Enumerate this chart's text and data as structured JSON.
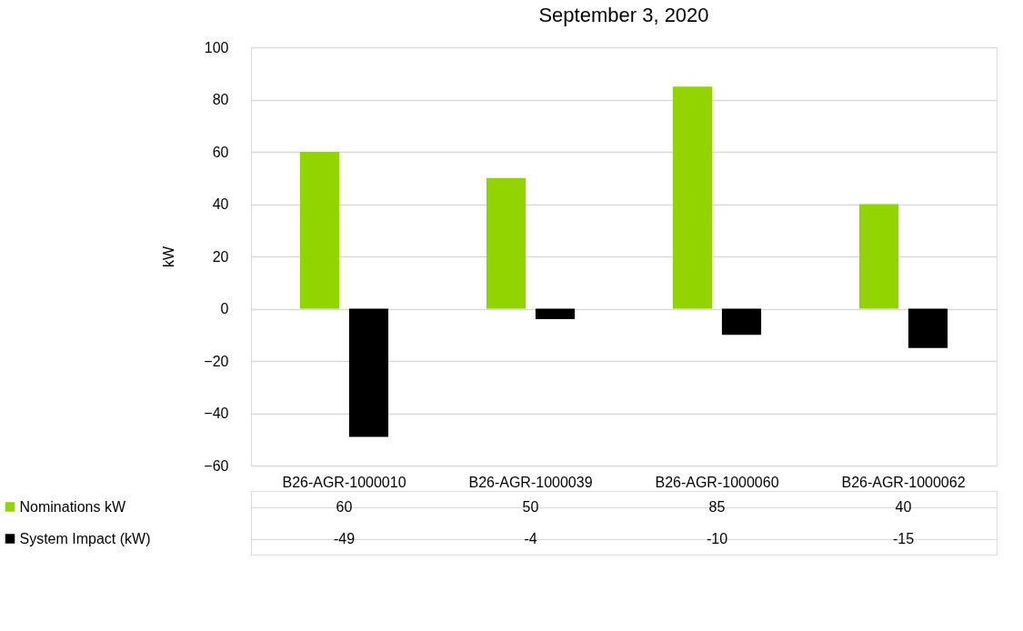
{
  "chart_data": {
    "type": "bar",
    "title": "September 3, 2020",
    "ylabel": "kW",
    "categories": [
      "B26-AGR-1000010",
      "B26-AGR-1000039",
      "B26-AGR-1000060",
      "B26-AGR-1000062"
    ],
    "series": [
      {
        "name": "Nominations kW",
        "color": "#92d400",
        "values": [
          60,
          50,
          85,
          40
        ]
      },
      {
        "name": "System Impact (kW)",
        "color": "#000000",
        "values": [
          -49,
          -4,
          -10,
          -15
        ]
      }
    ],
    "ylim": [
      -60,
      100
    ],
    "yticks": [
      -60,
      -40,
      -20,
      0,
      20,
      40,
      60,
      80,
      100
    ],
    "grid": "y",
    "legend": "bottom",
    "data_labels": true
  }
}
